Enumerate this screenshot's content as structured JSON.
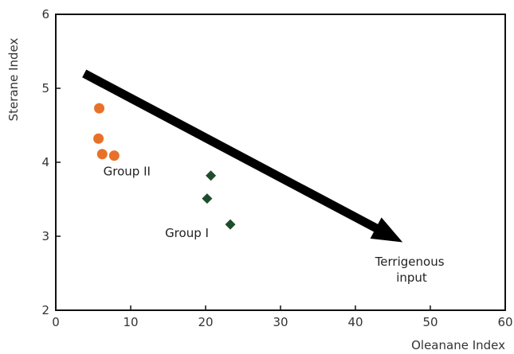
{
  "chart_data": {
    "type": "scatter",
    "xlabel": "Oleanane Index",
    "ylabel": "Sterane Index",
    "xlim": [
      0,
      60
    ],
    "ylim": [
      2,
      6
    ],
    "xticks": [
      0,
      10,
      20,
      30,
      40,
      50,
      60
    ],
    "yticks": [
      2,
      3,
      4,
      5,
      6
    ],
    "grid": false,
    "series": [
      {
        "marker": "circle",
        "color": "#e8712a",
        "points": [
          {
            "x": 5.8,
            "y": 4.73
          },
          {
            "x": 5.7,
            "y": 4.32
          },
          {
            "x": 6.2,
            "y": 4.11
          },
          {
            "x": 7.8,
            "y": 4.09
          }
        ]
      },
      {
        "marker": "diamond",
        "color": "#1e4d2b",
        "points": [
          {
            "x": 20.7,
            "y": 3.82
          },
          {
            "x": 20.2,
            "y": 3.51
          },
          {
            "x": 23.3,
            "y": 3.16
          }
        ]
      }
    ],
    "annotations": {
      "group2": {
        "text": "Group II",
        "x": 9.5,
        "y": 3.82
      },
      "group1": {
        "text": "Group I",
        "x": 17.5,
        "y": 2.99
      },
      "terrigenous": {
        "lines": [
          "Terrigenous",
          "input"
        ],
        "x": 47.5,
        "y": 2.6
      }
    },
    "arrow": {
      "from": {
        "x": 3.8,
        "y": 5.2
      },
      "to": {
        "x": 46.3,
        "y": 2.92
      },
      "color": "#000000"
    }
  }
}
